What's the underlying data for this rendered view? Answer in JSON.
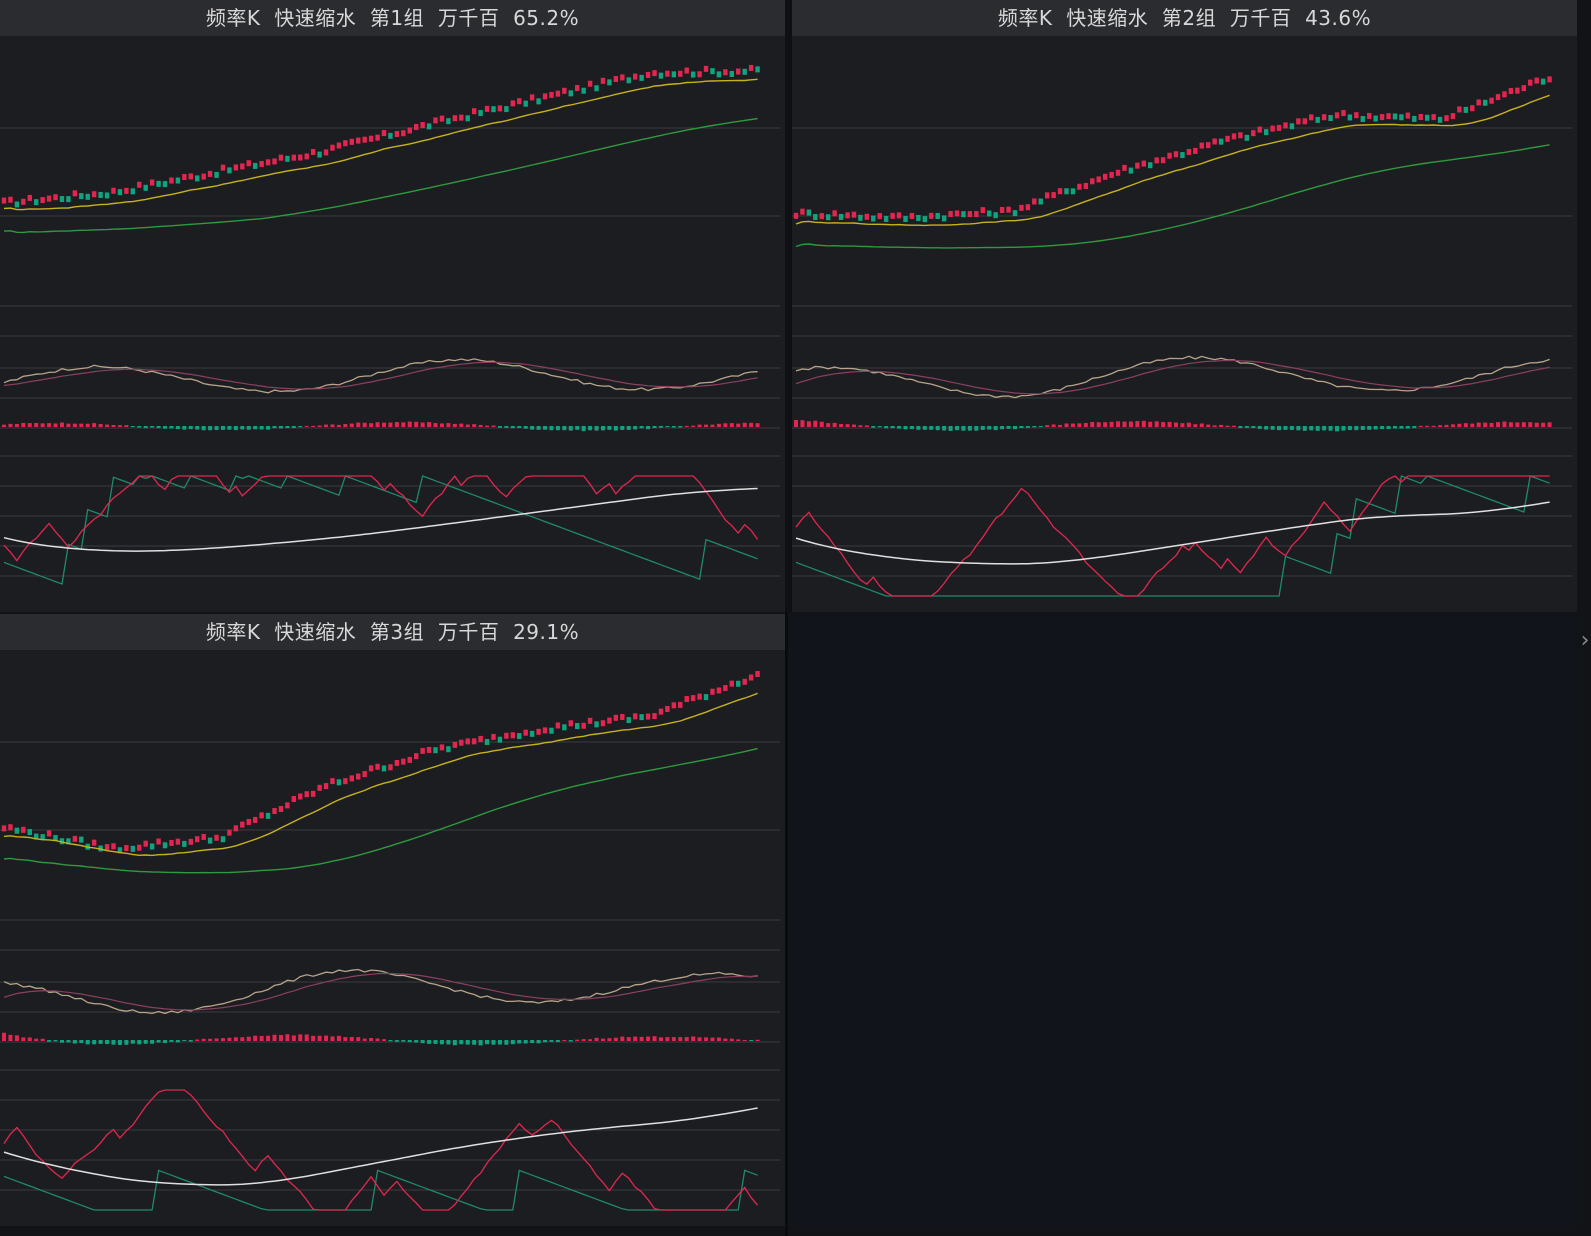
{
  "panels": [
    {
      "title": "频率K  快速缩水  第1组  万千百  65.2%",
      "trend": [
        0.3,
        0.35,
        0.45,
        0.55,
        0.68,
        0.8,
        0.92,
        0.93
      ],
      "candle_start": 0.3,
      "candle_end": 0.97
    },
    {
      "title": "频率K  快速缩水  第2组  万千百  43.6%",
      "trend": [
        0.25,
        0.23,
        0.26,
        0.45,
        0.6,
        0.72,
        0.7,
        0.9
      ],
      "candle_start": 0.25,
      "candle_end": 0.93
    },
    {
      "title": "频率K  快速缩水  第3组  万千百  29.1%",
      "trend": [
        0.25,
        0.15,
        0.2,
        0.45,
        0.62,
        0.72,
        0.78,
        0.98
      ],
      "candle_start": 0.25,
      "candle_end": 1.0
    }
  ],
  "colors": {
    "up": "#e3264f",
    "down": "#11a37f",
    "ma_short": "#c7b21e",
    "ma_long": "#2e9a3d",
    "dif": "#b8a48a",
    "dea": "#8a4060",
    "k_line": "#e3264f",
    "d_line": "#e0e0e0",
    "j_line": "#1f8a6a",
    "grid": "#3a3b40",
    "panel_bg": "#1c1d21",
    "title_bg": "#2b2c30"
  },
  "icons": {
    "expand": "chevron-right-icon"
  }
}
